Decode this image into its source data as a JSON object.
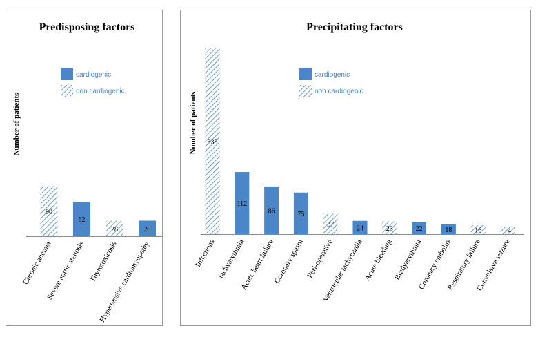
{
  "colors": {
    "cardiogenic": "#4a86c8",
    "non_cardiogenic_hatch": "#4a86c8",
    "frame": "#9a9a9a",
    "text": "#000000"
  },
  "chart_data": [
    {
      "type": "bar",
      "title": "Predisposing factors",
      "ylabel": "Number of patients",
      "ylim": [
        0,
        335
      ],
      "legend": {
        "position": "top-center",
        "items": [
          "cardiogenic",
          "non cardiogenic"
        ]
      },
      "grid": false,
      "categories": [
        "Chronic anemia",
        "Severe aortic stenosis",
        "Thyrotoxicosis",
        "Hypertensive cardiomyopathy"
      ],
      "values": [
        90,
        62,
        28,
        28
      ],
      "kinds": [
        "non cardiogenic",
        "cardiogenic",
        "non cardiogenic",
        "cardiogenic"
      ]
    },
    {
      "type": "bar",
      "title": "Precipitating factors",
      "ylabel": "Number of patients",
      "ylim": [
        0,
        335
      ],
      "legend": {
        "position": "top-center",
        "items": [
          "cardiogenic",
          "non cardiogenic"
        ]
      },
      "grid": false,
      "categories": [
        "Infections",
        "tachyarythmia",
        "Acute heart failure",
        "Coronary spasm",
        "Peri-operative",
        "Ventricular tachycardia",
        "Acute bleeding",
        "Bradyarythmia",
        "Coronary embolus",
        "Respiratory failure",
        "Convulsive seizure"
      ],
      "values": [
        335,
        112,
        86,
        75,
        37,
        24,
        23,
        22,
        18,
        16,
        14
      ],
      "kinds": [
        "non cardiogenic",
        "cardiogenic",
        "cardiogenic",
        "cardiogenic",
        "non cardiogenic",
        "cardiogenic",
        "non cardiogenic",
        "cardiogenic",
        "cardiogenic",
        "non cardiogenic",
        "non cardiogenic"
      ]
    }
  ]
}
